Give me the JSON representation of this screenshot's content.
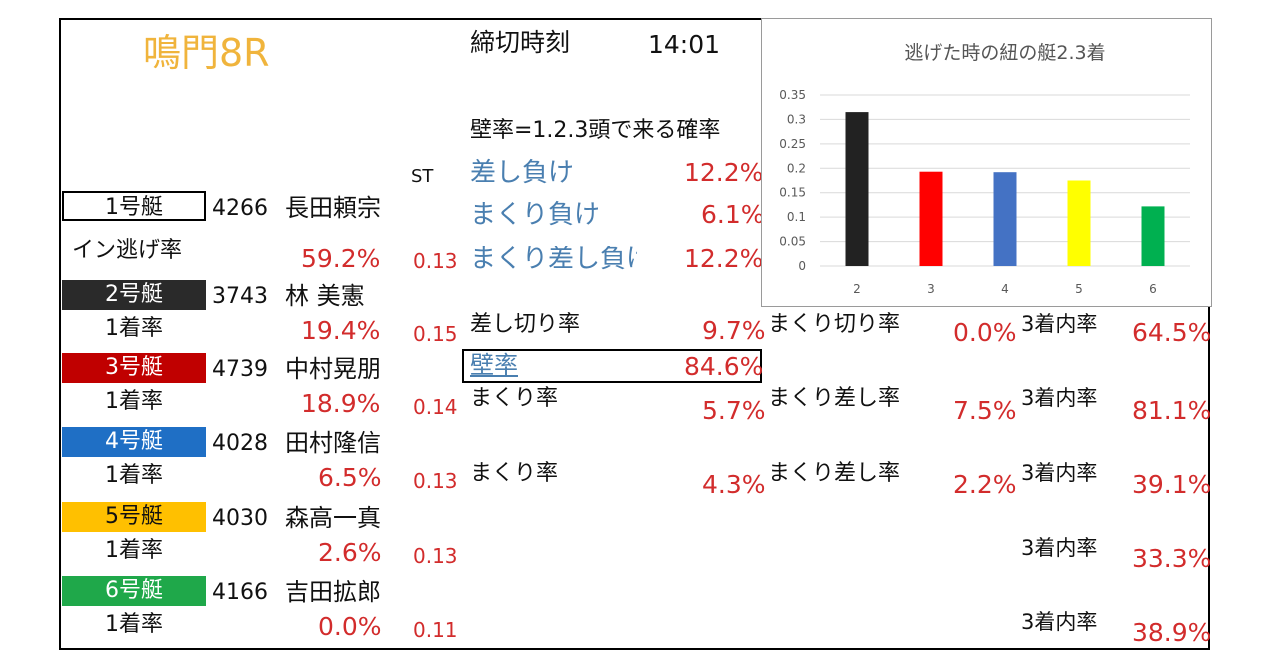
{
  "title": "鳴門8R",
  "deadline": {
    "label": "締切時刻",
    "time": "14:01"
  },
  "wall_note": "壁率=1.2.3頭で来る確率",
  "st_label": "ST",
  "boat1": {
    "name": "1号艇",
    "reg": "4266",
    "racer": "長田頼宗",
    "stat_label": "イン逃げ率",
    "stat": "59.2%",
    "st": "0.13"
  },
  "boats": [
    {
      "name": "2号艇",
      "reg": "3743",
      "racer": "林 美憲",
      "stat_label": "1着率",
      "stat": "19.4%",
      "st": "0.15",
      "color": "#2a2a2a",
      "text_color": "#ffffff"
    },
    {
      "name": "3号艇",
      "reg": "4739",
      "racer": "中村晃朋",
      "stat_label": "1着率",
      "stat": "18.9%",
      "st": "0.14",
      "color": "#c00000",
      "text_color": "#ffffff"
    },
    {
      "name": "4号艇",
      "reg": "4028",
      "racer": "田村隆信",
      "stat_label": "1着率",
      "stat": "6.5%",
      "st": "0.13",
      "color": "#1f6fc5",
      "text_color": "#ffffff"
    },
    {
      "name": "5号艇",
      "reg": "4030",
      "racer": "森高一真",
      "stat_label": "1着率",
      "stat": "2.6%",
      "st": "0.13",
      "color": "#ffc000",
      "text_color": "#111111"
    },
    {
      "name": "6号艇",
      "reg": "4166",
      "racer": "吉田拡郎",
      "stat_label": "1着率",
      "stat": "0.0%",
      "st": "0.11",
      "color": "#1fa84a",
      "text_color": "#ffffff"
    }
  ],
  "mid": {
    "lose": [
      {
        "label": "差し負け",
        "value": "12.2%"
      },
      {
        "label": "まくり負け",
        "value": "6.1%"
      },
      {
        "label": "まくり差し負け",
        "value": "12.2%"
      }
    ],
    "row2": {
      "a_label": "差し切り率",
      "a_value": "9.7%",
      "b_label": "まくり切り率",
      "b_value": "0.0%",
      "c_label": "3着内率",
      "c_value": "64.5%"
    },
    "wall": {
      "label": "壁率",
      "value": "84.6%"
    },
    "row3": {
      "a_label": "まくり率",
      "a_value": "5.7%",
      "b_label": "まくり差し率",
      "b_value": "7.5%",
      "c_label": "3着内率",
      "c_value": "81.1%"
    },
    "row4": {
      "a_label": "まくり率",
      "a_value": "4.3%",
      "b_label": "まくり差し率",
      "b_value": "2.2%",
      "c_label": "3着内率",
      "c_value": "39.1%"
    },
    "row5": {
      "c_label": "3着内率",
      "c_value": "33.3%"
    },
    "row6": {
      "c_label": "3着内率",
      "c_value": "38.9%"
    }
  },
  "chart_data": {
    "type": "bar",
    "title": "逃げた時の紐の艇2.3着",
    "categories": [
      "2",
      "3",
      "4",
      "5",
      "6"
    ],
    "values": [
      0.315,
      0.193,
      0.192,
      0.175,
      0.122
    ],
    "colors": [
      "#222222",
      "#ff0000",
      "#4472c4",
      "#ffff00",
      "#00b050"
    ],
    "ylim": [
      0,
      0.35
    ],
    "yticks": [
      "0",
      "0.05",
      "0.1",
      "0.15",
      "0.2",
      "0.25",
      "0.3",
      "0.35"
    ],
    "grid": true,
    "xlabel": "",
    "ylabel": ""
  }
}
